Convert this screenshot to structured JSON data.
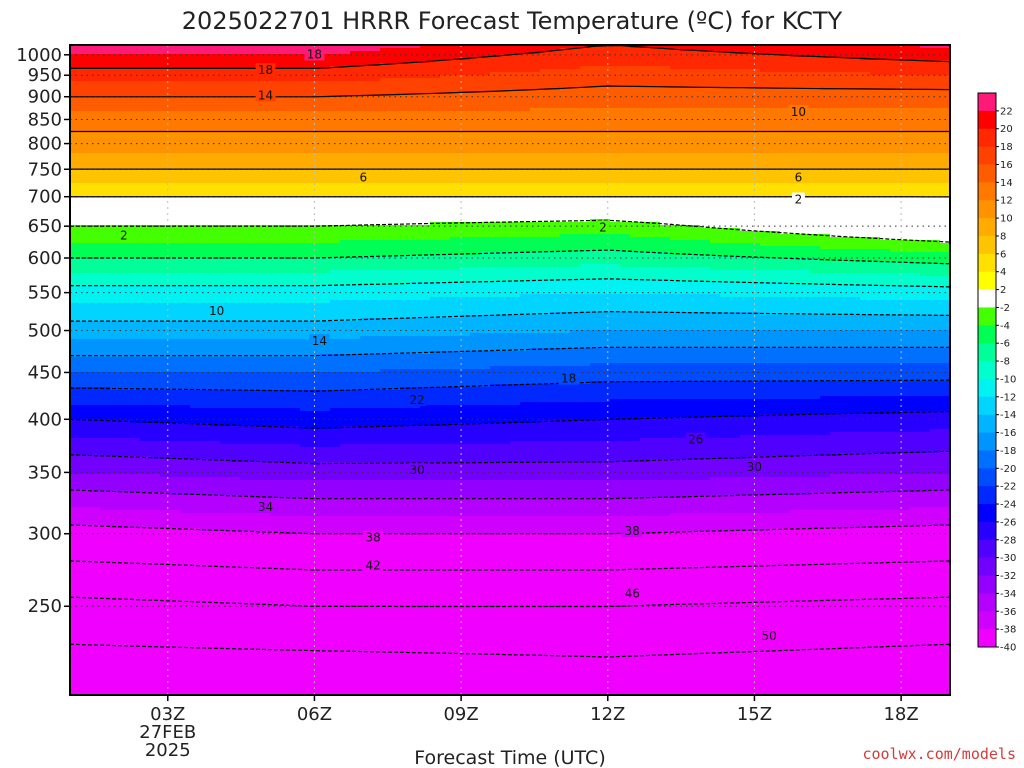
{
  "chart_data": {
    "type": "heatmap",
    "title": "2025022701 HRRR Forecast Temperature (ºC) for KCTY",
    "xlabel": "Forecast Time (UTC)",
    "ylabel": "",
    "x_ticks": [
      {
        "hour": 3,
        "label": "03Z"
      },
      {
        "hour": 6,
        "label": "06Z"
      },
      {
        "hour": 9,
        "label": "09Z"
      },
      {
        "hour": 12,
        "label": "12Z"
      },
      {
        "hour": 15,
        "label": "15Z"
      },
      {
        "hour": 18,
        "label": "18Z"
      }
    ],
    "x_date_lines": [
      "27FEB",
      "2025"
    ],
    "xlim": [
      1,
      19
    ],
    "y_ticks": [
      250,
      300,
      350,
      400,
      450,
      500,
      550,
      600,
      650,
      700,
      750,
      800,
      850,
      900,
      950,
      1000
    ],
    "ylim": [
      1025,
      200
    ],
    "y_scale": "log",
    "grid": true,
    "colorbar": {
      "position": "right",
      "labels": [
        22,
        20,
        18,
        16,
        14,
        12,
        10,
        8,
        6,
        4,
        2,
        -2,
        -4,
        -6,
        -8,
        -10,
        -12,
        -14,
        -16,
        -18,
        -20,
        -22,
        -24,
        -26,
        -28,
        -30,
        -32,
        -34,
        -36,
        -38,
        -40
      ]
    },
    "profiles": [
      {
        "hour": 1,
        "levels": [
          1000,
          950,
          900,
          850,
          800,
          750,
          700,
          650,
          600,
          550,
          500,
          450,
          400,
          350,
          300,
          250,
          200
        ],
        "temps": [
          20,
          17,
          14,
          11,
          9,
          6,
          2,
          -2,
          -6,
          -11,
          -15,
          -20,
          -26,
          -32,
          -39,
          -47,
          -54
        ]
      },
      {
        "hour": 6,
        "levels": [
          1000,
          950,
          900,
          850,
          800,
          750,
          700,
          650,
          600,
          550,
          500,
          450,
          400,
          350,
          300,
          250,
          200
        ],
        "temps": [
          20,
          17,
          14,
          11,
          9,
          6,
          2,
          -2,
          -6,
          -11,
          -15,
          -20,
          -25,
          -31,
          -38,
          -46,
          -54
        ]
      },
      {
        "hour": 12,
        "levels": [
          1000,
          950,
          900,
          850,
          800,
          750,
          700,
          650,
          600,
          550,
          500,
          450,
          400,
          350,
          300,
          250,
          200
        ],
        "temps": [
          17,
          15,
          13,
          11,
          9,
          6,
          2,
          -3,
          -7,
          -12,
          -16,
          -21,
          -26,
          -31,
          -38,
          -46,
          -53
        ]
      },
      {
        "hour": 19,
        "levels": [
          1000,
          950,
          900,
          850,
          800,
          750,
          700,
          650,
          600,
          550,
          500,
          450,
          400,
          350,
          300,
          250,
          200
        ],
        "temps": [
          19,
          16,
          13,
          11,
          9,
          6,
          2,
          1,
          -5,
          -11,
          -16,
          -21,
          -27,
          -32,
          -39,
          -47,
          -54
        ]
      }
    ],
    "contour_labels": [
      {
        "text": "50",
        "hour": 15.3,
        "p": 232
      },
      {
        "text": "46",
        "hour": 12.5,
        "p": 258
      },
      {
        "text": "42",
        "hour": 7.2,
        "p": 277
      },
      {
        "text": "38",
        "hour": 7.2,
        "p": 297
      },
      {
        "text": "38",
        "hour": 12.5,
        "p": 302
      },
      {
        "text": "34",
        "hour": 5.0,
        "p": 321
      },
      {
        "text": "30",
        "hour": 8.1,
        "p": 352
      },
      {
        "text": "30",
        "hour": 15.0,
        "p": 355
      },
      {
        "text": "26",
        "hour": 13.8,
        "p": 380
      },
      {
        "text": "22",
        "hour": 8.1,
        "p": 420
      },
      {
        "text": "18",
        "hour": 11.2,
        "p": 443
      },
      {
        "text": "14",
        "hour": 6.1,
        "p": 487
      },
      {
        "text": "10",
        "hour": 4.0,
        "p": 525
      },
      {
        "text": "2",
        "hour": 2.1,
        "p": 635
      },
      {
        "text": "2",
        "hour": 11.9,
        "p": 648
      },
      {
        "text": "2",
        "hour": 15.9,
        "p": 695
      },
      {
        "text": "6",
        "hour": 7.0,
        "p": 735
      },
      {
        "text": "6",
        "hour": 15.9,
        "p": 735
      },
      {
        "text": "10",
        "hour": 15.9,
        "p": 866
      },
      {
        "text": "14",
        "hour": 5.0,
        "p": 903
      },
      {
        "text": "18",
        "hour": 5.0,
        "p": 962
      },
      {
        "text": "18",
        "hour": 6.0,
        "p": 1001
      }
    ],
    "credit": "coolwx.com/models"
  }
}
